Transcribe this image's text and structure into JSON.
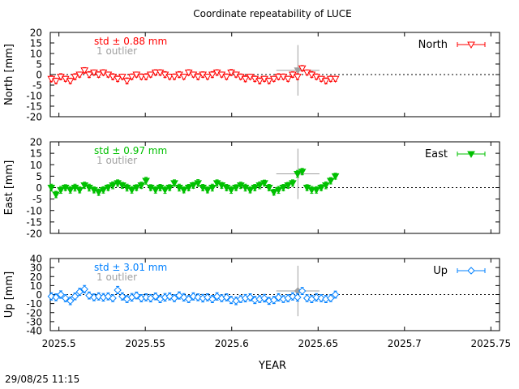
{
  "title": "Coordinate repeatability of LUCE",
  "xlabel": "YEAR",
  "timestamp": "29/08/25 11:15",
  "chart_data": [
    {
      "type": "scatter",
      "series_name": "North",
      "ylabel": "North [mm]",
      "std_label": "std ± 0.88 mm",
      "outlier_label": "1 outlier",
      "color": "#ff0000",
      "marker": "triangle-down-open",
      "xlim": [
        2025.495,
        2025.755
      ],
      "ylim": [
        -20,
        20
      ],
      "yticks": [
        20,
        15,
        10,
        5,
        0,
        -5,
        -10,
        -15,
        -20
      ],
      "xticks": [
        "2025.5",
        "2025.55",
        "2025.6",
        "2025.65",
        "2025.7",
        "2025.75"
      ],
      "x": [
        2025.4956,
        2025.4983,
        2025.5011,
        2025.5038,
        2025.5066,
        2025.5093,
        2025.512,
        2025.5148,
        2025.5175,
        2025.5203,
        2025.523,
        2025.5257,
        2025.5285,
        2025.5312,
        2025.534,
        2025.5367,
        2025.5394,
        2025.5422,
        2025.5449,
        2025.5477,
        2025.5504,
        2025.5531,
        2025.5559,
        2025.5586,
        2025.5614,
        2025.5641,
        2025.5668,
        2025.5696,
        2025.5723,
        2025.5751,
        2025.5778,
        2025.5805,
        2025.5833,
        2025.586,
        2025.5888,
        2025.5915,
        2025.5942,
        2025.597,
        2025.5997,
        2025.6025,
        2025.6052,
        2025.6079,
        2025.6107,
        2025.6134,
        2025.6162,
        2025.6189,
        2025.6216,
        2025.6244,
        2025.6271,
        2025.6299,
        2025.6326,
        2025.6353,
        2025.6381,
        2025.6408,
        2025.6436,
        2025.6463,
        2025.649,
        2025.6518,
        2025.6545,
        2025.6573,
        2025.66
      ],
      "y": [
        -2,
        -3,
        -1,
        -2,
        -3,
        -1,
        0,
        2,
        0,
        1,
        0,
        1,
        0,
        -1,
        -2,
        -1,
        -3,
        -1,
        0,
        -1,
        -1,
        0,
        1,
        1,
        0,
        -1,
        -1,
        0,
        -1,
        1,
        0,
        -1,
        0,
        -1,
        0,
        1,
        0,
        -1,
        1,
        0,
        -1,
        -2,
        -1,
        -2,
        -3,
        -2,
        -3,
        -2,
        -1,
        -1,
        -2,
        0,
        -1,
        3,
        1,
        0,
        -1,
        -2,
        -3,
        -2,
        -2
      ],
      "err": [
        1.4,
        1.3,
        1.4,
        1.2,
        1.3,
        1.4,
        1.2,
        1.3,
        1.4,
        1.2,
        1.3,
        1.3,
        1.2,
        1.4,
        1.3,
        1.2,
        1.4,
        1.3,
        1.2,
        1.3,
        1.4,
        1.2,
        1.3,
        1.3,
        1.4,
        1.2,
        1.3,
        1.4,
        1.2,
        1.3,
        1.2,
        1.4,
        1.3,
        1.2,
        1.4,
        1.3,
        1.2,
        1.3,
        1.4,
        1.2,
        1.3,
        1.4,
        1.2,
        1.3,
        1.4,
        1.2,
        1.3,
        1.2,
        1.4,
        1.3,
        1.2,
        1.3,
        1.4,
        1.3,
        1.2,
        1.4,
        1.3,
        1.2,
        1.4,
        1.3,
        1.2
      ],
      "outlier": {
        "x": 2025.6383,
        "y": 2,
        "xerr": 0.0125,
        "yerr": 12
      }
    },
    {
      "type": "scatter",
      "series_name": "East",
      "ylabel": "East [mm]",
      "std_label": "std ± 0.97 mm",
      "outlier_label": "1 outlier",
      "color": "#00c000",
      "marker": "triangle-down-filled",
      "xlim": [
        2025.495,
        2025.755
      ],
      "ylim": [
        -20,
        20
      ],
      "yticks": [
        20,
        15,
        10,
        5,
        0,
        -5,
        -10,
        -15,
        -20
      ],
      "xticks": [
        "2025.5",
        "2025.55",
        "2025.6",
        "2025.65",
        "2025.7",
        "2025.75"
      ],
      "x": [
        2025.4956,
        2025.4983,
        2025.5011,
        2025.5038,
        2025.5066,
        2025.5093,
        2025.512,
        2025.5148,
        2025.5175,
        2025.5203,
        2025.523,
        2025.5257,
        2025.5285,
        2025.5312,
        2025.534,
        2025.5367,
        2025.5394,
        2025.5422,
        2025.5449,
        2025.5477,
        2025.5504,
        2025.5531,
        2025.5559,
        2025.5586,
        2025.5614,
        2025.5641,
        2025.5668,
        2025.5696,
        2025.5723,
        2025.5751,
        2025.5778,
        2025.5805,
        2025.5833,
        2025.586,
        2025.5888,
        2025.5915,
        2025.5942,
        2025.597,
        2025.5997,
        2025.6025,
        2025.6052,
        2025.6079,
        2025.6107,
        2025.6134,
        2025.6162,
        2025.6189,
        2025.6216,
        2025.6244,
        2025.6271,
        2025.6299,
        2025.6326,
        2025.6353,
        2025.6381,
        2025.6408,
        2025.6436,
        2025.6463,
        2025.649,
        2025.6518,
        2025.6545,
        2025.6573,
        2025.66
      ],
      "y": [
        0,
        -3,
        -1,
        0,
        -1,
        0,
        -1,
        1,
        0,
        -1,
        -2,
        -1,
        0,
        1,
        2,
        1,
        0,
        -1,
        0,
        1,
        3,
        0,
        -1,
        0,
        -1,
        0,
        2,
        0,
        -1,
        0,
        1,
        2,
        0,
        -1,
        0,
        2,
        1,
        0,
        -1,
        0,
        1,
        0,
        -1,
        0,
        1,
        2,
        0,
        -2,
        -1,
        0,
        1,
        2,
        6,
        7,
        0,
        -1,
        -1,
        0,
        1,
        3,
        5
      ],
      "err": [
        1.5,
        1.4,
        1.5,
        1.3,
        1.4,
        1.5,
        1.3,
        1.4,
        1.5,
        1.3,
        1.4,
        1.4,
        1.3,
        1.5,
        1.4,
        1.3,
        1.5,
        1.4,
        1.3,
        1.4,
        1.5,
        1.3,
        1.4,
        1.4,
        1.5,
        1.3,
        1.4,
        1.5,
        1.3,
        1.4,
        1.3,
        1.5,
        1.4,
        1.3,
        1.5,
        1.4,
        1.3,
        1.4,
        1.5,
        1.3,
        1.4,
        1.5,
        1.3,
        1.4,
        1.5,
        1.3,
        1.4,
        1.3,
        1.5,
        1.4,
        1.3,
        1.4,
        1.5,
        1.4,
        1.3,
        1.5,
        1.4,
        1.3,
        1.5,
        1.4,
        1.3
      ],
      "outlier": {
        "x": 2025.6383,
        "y": 6,
        "xerr": 0.0125,
        "yerr": 11
      }
    },
    {
      "type": "scatter",
      "series_name": "Up",
      "ylabel": "Up [mm]",
      "std_label": "std ± 3.01 mm",
      "outlier_label": "1 outlier",
      "color": "#0080ff",
      "marker": "diamond-open",
      "xlim": [
        2025.495,
        2025.755
      ],
      "ylim": [
        -40,
        40
      ],
      "yticks": [
        40,
        30,
        20,
        10,
        0,
        -10,
        -20,
        -30,
        -40
      ],
      "xticks": [
        "2025.5",
        "2025.55",
        "2025.6",
        "2025.65",
        "2025.7",
        "2025.75"
      ],
      "x": [
        2025.4956,
        2025.4983,
        2025.5011,
        2025.5038,
        2025.5066,
        2025.5093,
        2025.512,
        2025.5148,
        2025.5175,
        2025.5203,
        2025.523,
        2025.5257,
        2025.5285,
        2025.5312,
        2025.534,
        2025.5367,
        2025.5394,
        2025.5422,
        2025.5449,
        2025.5477,
        2025.5504,
        2025.5531,
        2025.5559,
        2025.5586,
        2025.5614,
        2025.5641,
        2025.5668,
        2025.5696,
        2025.5723,
        2025.5751,
        2025.5778,
        2025.5805,
        2025.5833,
        2025.586,
        2025.5888,
        2025.5915,
        2025.5942,
        2025.597,
        2025.5997,
        2025.6025,
        2025.6052,
        2025.6079,
        2025.6107,
        2025.6134,
        2025.6162,
        2025.6189,
        2025.6216,
        2025.6244,
        2025.6271,
        2025.6299,
        2025.6326,
        2025.6353,
        2025.6381,
        2025.6408,
        2025.6436,
        2025.6463,
        2025.649,
        2025.6518,
        2025.6545,
        2025.6573,
        2025.66
      ],
      "y": [
        -2,
        -3,
        0,
        -4,
        -7,
        -2,
        3,
        6,
        -1,
        -3,
        -2,
        -3,
        -2,
        -4,
        5,
        -2,
        -5,
        -3,
        -1,
        -4,
        -3,
        -4,
        -2,
        -5,
        -3,
        -2,
        -4,
        -1,
        -3,
        -5,
        -2,
        -3,
        -4,
        -3,
        -5,
        -2,
        -4,
        -3,
        -6,
        -7,
        -5,
        -4,
        -3,
        -6,
        -5,
        -4,
        -7,
        -6,
        -3,
        -5,
        -4,
        -2,
        -3,
        4,
        -4,
        -5,
        -3,
        -4,
        -5,
        -4,
        0
      ],
      "err": [
        4.0,
        3.8,
        4.1,
        3.9,
        4.2,
        3.8,
        4.0,
        4.1,
        3.9,
        3.8,
        4.0,
        4.2,
        3.9,
        3.8,
        4.1,
        4.0,
        3.9,
        4.2,
        3.8,
        4.0,
        3.9,
        4.1,
        3.8,
        4.0,
        4.2,
        3.9,
        3.8,
        4.0,
        4.1,
        3.9,
        4.0,
        3.8,
        4.2,
        3.9,
        4.0,
        4.1,
        3.8,
        3.9,
        4.0,
        4.2,
        3.8,
        4.1,
        3.9,
        4.0,
        3.8,
        4.2,
        3.9,
        4.0,
        4.1,
        3.8,
        3.9,
        4.0,
        4.2,
        3.9,
        3.8,
        4.0,
        4.1,
        3.9,
        4.0,
        3.8,
        3.9
      ],
      "outlier": {
        "x": 2025.6383,
        "y": 4,
        "xerr": 0.0125,
        "yerr": 28
      }
    }
  ]
}
